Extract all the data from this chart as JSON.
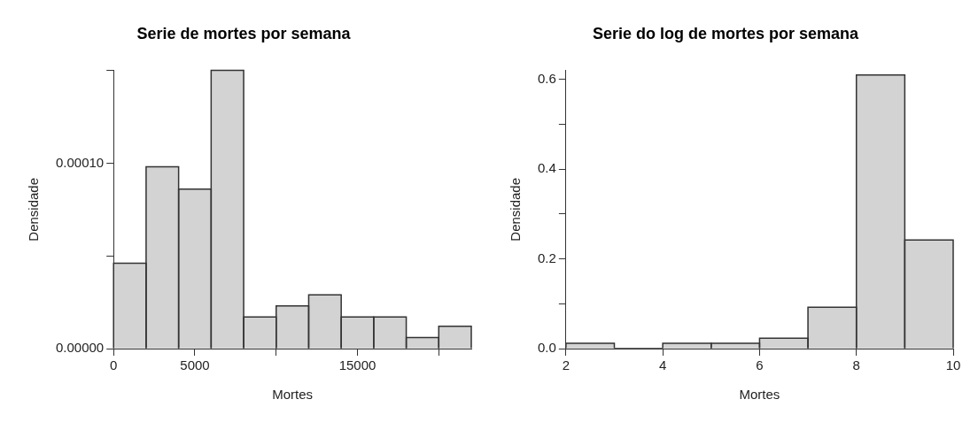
{
  "chart_data": [
    {
      "type": "histogram",
      "title": "Serie de mortes por semana",
      "xlabel": "Mortes",
      "ylabel": "Densidade",
      "color": "#d3d3d3",
      "bins": [
        0,
        2000,
        4000,
        6000,
        8000,
        10000,
        12000,
        14000,
        16000,
        18000,
        20000,
        22000
      ],
      "values": [
        4.6e-05,
        9.8e-05,
        8.6e-05,
        0.00015,
        1.7e-05,
        2.3e-05,
        2.9e-05,
        1.7e-05,
        1.7e-05,
        6e-06,
        1.2e-05
      ],
      "xlim": [
        0,
        22000
      ],
      "xticks": [
        0,
        5000,
        {
          "value": 10000,
          "label": null
        },
        15000,
        {
          "value": 20000,
          "label": null
        }
      ],
      "ylim": [
        0,
        0.00015
      ],
      "yticks": [
        {
          "value": 0,
          "label": "0.00000"
        },
        {
          "value": 5e-05,
          "label": null
        },
        {
          "value": 0.0001,
          "label": "0.00010"
        },
        {
          "value": 0.00015,
          "label": null
        }
      ]
    },
    {
      "type": "histogram",
      "title": "Serie do log de mortes por semana",
      "xlabel": "Mortes",
      "ylabel": "Densidade",
      "color": "#d3d3d3",
      "bins": [
        2,
        3,
        4,
        5,
        6,
        7,
        8,
        9,
        10
      ],
      "values": [
        0.012,
        0,
        0.012,
        0.012,
        0.023,
        0.092,
        0.61,
        0.242
      ],
      "xlim": [
        2,
        10
      ],
      "xticks": [
        2,
        4,
        6,
        8,
        10
      ],
      "ylim": [
        0,
        0.62
      ],
      "yticks": [
        {
          "value": 0,
          "label": "0.0"
        },
        {
          "value": 0.1,
          "label": null
        },
        {
          "value": 0.2,
          "label": "0.2"
        },
        {
          "value": 0.3,
          "label": null
        },
        {
          "value": 0.4,
          "label": "0.4"
        },
        {
          "value": 0.5,
          "label": null
        },
        {
          "value": 0.6,
          "label": "0.6"
        }
      ]
    }
  ]
}
